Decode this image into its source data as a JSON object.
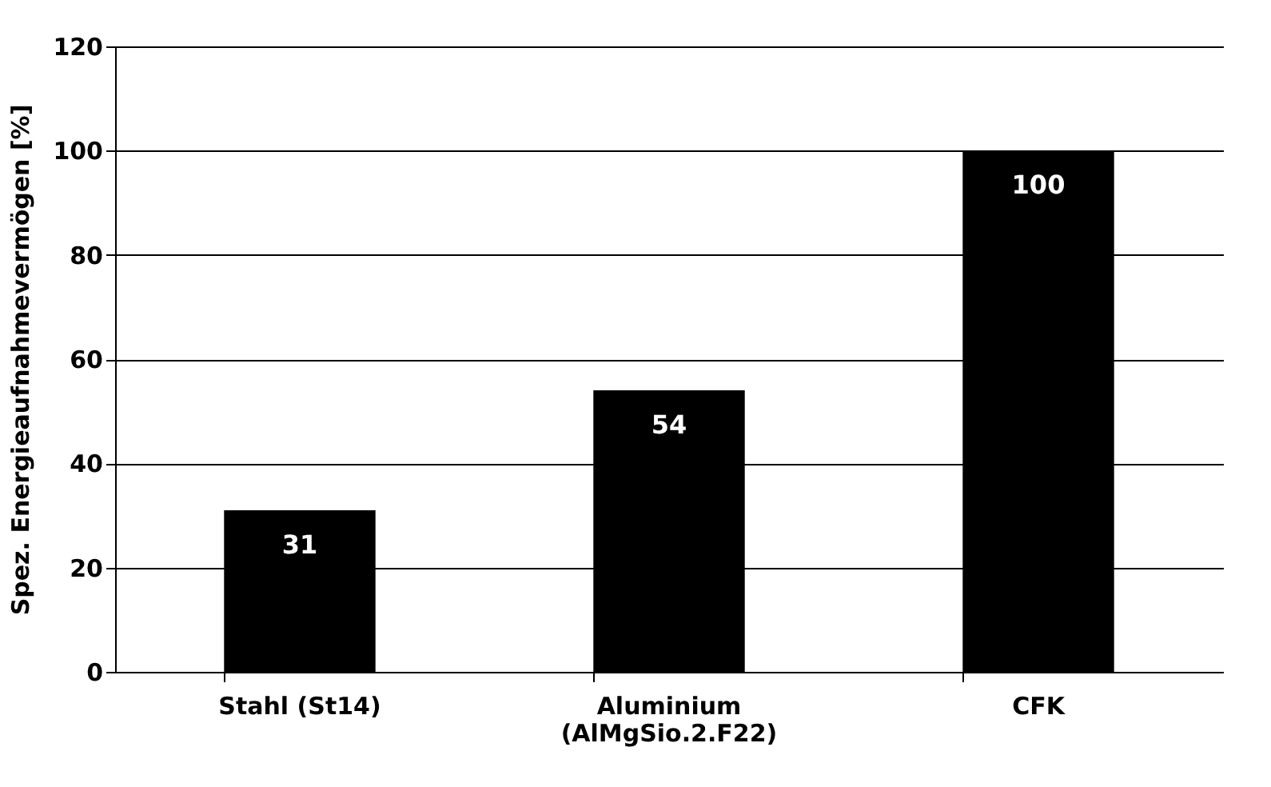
{
  "chart_data": {
    "type": "bar",
    "ylabel": "Spez. Energieaufnahmevermögen [%]",
    "categories": [
      "Stahl (St14)",
      "Aluminium\n(AlMgSio.2.F22)",
      "CFK"
    ],
    "values": [
      31,
      54,
      100
    ],
    "color": "#000000",
    "ylim": [
      0,
      120
    ],
    "yticks": [
      0,
      20,
      40,
      60,
      80,
      100,
      120
    ],
    "grid": "y",
    "data_labels": true
  }
}
